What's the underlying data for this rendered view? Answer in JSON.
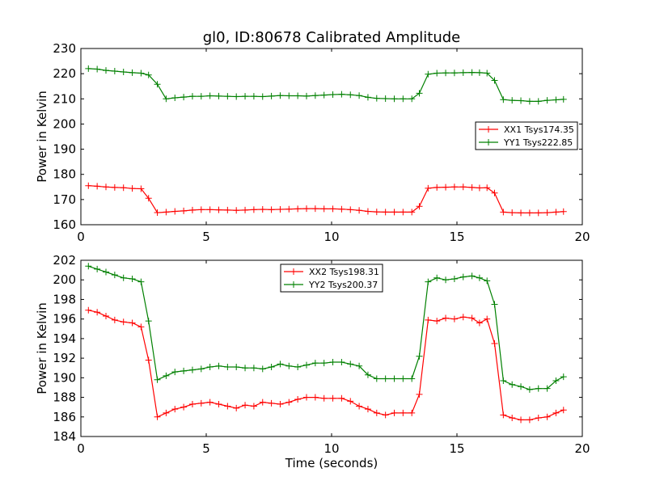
{
  "chart_data": [
    {
      "type": "line",
      "title": "gl0, ID:80678 Calibrated Amplitude",
      "xlabel": "",
      "ylabel": "Power in Kelvin",
      "xlim": [
        0,
        20
      ],
      "ylim": [
        160,
        230
      ],
      "xticks": [
        "0",
        "5",
        "10",
        "15",
        "20"
      ],
      "yticks": [
        "160",
        "170",
        "180",
        "190",
        "200",
        "210",
        "220",
        "230"
      ],
      "legend_position": "center-right",
      "series": [
        {
          "name": "XX1 Tsys174.35",
          "color": "#ff0000",
          "x": [
            0.3,
            0.65,
            1.0,
            1.35,
            1.7,
            2.05,
            2.4,
            2.7,
            3.05,
            3.4,
            3.75,
            4.1,
            4.45,
            4.8,
            5.15,
            5.5,
            5.85,
            6.2,
            6.55,
            6.9,
            7.25,
            7.6,
            7.95,
            8.3,
            8.65,
            9.0,
            9.35,
            9.7,
            10.05,
            10.4,
            10.75,
            11.1,
            11.45,
            11.8,
            12.15,
            12.5,
            12.85,
            13.2,
            13.5,
            13.85,
            14.2,
            14.55,
            14.9,
            15.25,
            15.6,
            15.9,
            16.2,
            16.5,
            16.85,
            17.2,
            17.55,
            17.9,
            18.25,
            18.6,
            18.95,
            19.25
          ],
          "y": [
            175.5,
            175.3,
            175,
            174.8,
            174.7,
            174.4,
            174.3,
            170.5,
            164.8,
            165,
            165.3,
            165.5,
            165.8,
            166,
            166,
            165.9,
            165.8,
            165.7,
            165.8,
            166,
            166.1,
            166,
            166.1,
            166.2,
            166.3,
            166.4,
            166.4,
            166.3,
            166.3,
            166.2,
            166,
            165.7,
            165.3,
            165.1,
            165,
            165,
            165,
            165,
            167.3,
            174.5,
            174.8,
            174.9,
            175,
            175,
            174.8,
            174.6,
            174.7,
            172.6,
            165,
            164.8,
            164.7,
            164.7,
            164.7,
            164.8,
            165,
            165.2
          ],
          "markers": "+"
        },
        {
          "name": "YY1 Tsys222.85",
          "color": "#008000",
          "x": [
            0.3,
            0.65,
            1.0,
            1.35,
            1.7,
            2.05,
            2.4,
            2.7,
            3.05,
            3.4,
            3.75,
            4.1,
            4.45,
            4.8,
            5.15,
            5.5,
            5.85,
            6.2,
            6.55,
            6.9,
            7.25,
            7.6,
            7.95,
            8.3,
            8.65,
            9.0,
            9.35,
            9.7,
            10.05,
            10.4,
            10.75,
            11.1,
            11.45,
            11.8,
            12.15,
            12.5,
            12.85,
            13.2,
            13.5,
            13.85,
            14.2,
            14.55,
            14.9,
            15.25,
            15.6,
            15.9,
            16.2,
            16.5,
            16.85,
            17.2,
            17.55,
            17.9,
            18.25,
            18.6,
            18.95,
            19.25
          ],
          "y": [
            222,
            221.8,
            221.3,
            221,
            220.7,
            220.4,
            220.2,
            219.5,
            215.8,
            210,
            210.4,
            210.7,
            211,
            211,
            211.2,
            211.1,
            211,
            210.9,
            211,
            211,
            210.9,
            211.1,
            211.3,
            211.2,
            211.2,
            211.1,
            211.3,
            211.5,
            211.7,
            211.8,
            211.6,
            211.3,
            210.6,
            210.2,
            210.1,
            210,
            210,
            210,
            212.2,
            219.8,
            220.2,
            220.3,
            220.3,
            220.4,
            220.5,
            220.4,
            220.2,
            217.3,
            209.7,
            209.4,
            209.3,
            209,
            209,
            209.4,
            209.6,
            209.8
          ],
          "markers": "+"
        }
      ]
    },
    {
      "type": "line",
      "title": "",
      "xlabel": "Time (seconds)",
      "ylabel": "Power in Kelvin",
      "xlim": [
        0,
        20
      ],
      "ylim": [
        184,
        202
      ],
      "xticks": [
        "0",
        "5",
        "10",
        "15",
        "20"
      ],
      "yticks": [
        "184",
        "186",
        "188",
        "190",
        "192",
        "194",
        "196",
        "198",
        "200",
        "202"
      ],
      "legend_position": "upper-center",
      "series": [
        {
          "name": "XX2 Tsys198.31",
          "color": "#ff0000",
          "x": [
            0.3,
            0.65,
            1.0,
            1.35,
            1.7,
            2.05,
            2.4,
            2.7,
            3.05,
            3.4,
            3.75,
            4.1,
            4.45,
            4.8,
            5.15,
            5.5,
            5.85,
            6.2,
            6.55,
            6.9,
            7.25,
            7.6,
            7.95,
            8.3,
            8.65,
            9.0,
            9.35,
            9.7,
            10.05,
            10.4,
            10.75,
            11.1,
            11.45,
            11.8,
            12.15,
            12.5,
            12.85,
            13.2,
            13.5,
            13.85,
            14.2,
            14.55,
            14.9,
            15.25,
            15.6,
            15.9,
            16.2,
            16.5,
            16.85,
            17.2,
            17.55,
            17.9,
            18.25,
            18.6,
            18.95,
            19.25
          ],
          "y": [
            196.9,
            196.7,
            196.3,
            195.9,
            195.7,
            195.6,
            195.2,
            191.8,
            186,
            186.4,
            186.8,
            187,
            187.3,
            187.4,
            187.5,
            187.3,
            187.1,
            186.9,
            187.2,
            187.1,
            187.5,
            187.4,
            187.3,
            187.5,
            187.8,
            188,
            188,
            187.9,
            187.9,
            187.9,
            187.6,
            187.1,
            186.8,
            186.4,
            186.2,
            186.4,
            186.4,
            186.4,
            188.3,
            195.9,
            195.8,
            196.1,
            196,
            196.2,
            196.1,
            195.6,
            196,
            193.5,
            186.2,
            185.9,
            185.7,
            185.7,
            185.9,
            186,
            186.4,
            186.7
          ],
          "markers": "+"
        },
        {
          "name": "YY2 Tsys200.37",
          "color": "#008000",
          "x": [
            0.3,
            0.65,
            1.0,
            1.35,
            1.7,
            2.05,
            2.4,
            2.7,
            3.05,
            3.4,
            3.75,
            4.1,
            4.45,
            4.8,
            5.15,
            5.5,
            5.85,
            6.2,
            6.55,
            6.9,
            7.25,
            7.6,
            7.95,
            8.3,
            8.65,
            9.0,
            9.35,
            9.7,
            10.05,
            10.4,
            10.75,
            11.1,
            11.45,
            11.8,
            12.15,
            12.5,
            12.85,
            13.2,
            13.5,
            13.85,
            14.2,
            14.55,
            14.9,
            15.25,
            15.6,
            15.9,
            16.2,
            16.5,
            16.85,
            17.2,
            17.55,
            17.9,
            18.25,
            18.6,
            18.95,
            19.25
          ],
          "y": [
            201.4,
            201.1,
            200.8,
            200.5,
            200.2,
            200.1,
            199.8,
            195.8,
            189.8,
            190.2,
            190.6,
            190.7,
            190.8,
            190.9,
            191.1,
            191.2,
            191.1,
            191.1,
            191,
            191,
            190.9,
            191.1,
            191.4,
            191.2,
            191.1,
            191.3,
            191.5,
            191.5,
            191.6,
            191.6,
            191.4,
            191.2,
            190.3,
            189.9,
            189.9,
            189.9,
            189.9,
            189.9,
            192.2,
            199.8,
            200.2,
            200,
            200.1,
            200.3,
            200.4,
            200.2,
            199.9,
            197.5,
            189.7,
            189.3,
            189.1,
            188.8,
            188.9,
            188.9,
            189.7,
            190.1
          ],
          "markers": "+"
        }
      ]
    }
  ]
}
